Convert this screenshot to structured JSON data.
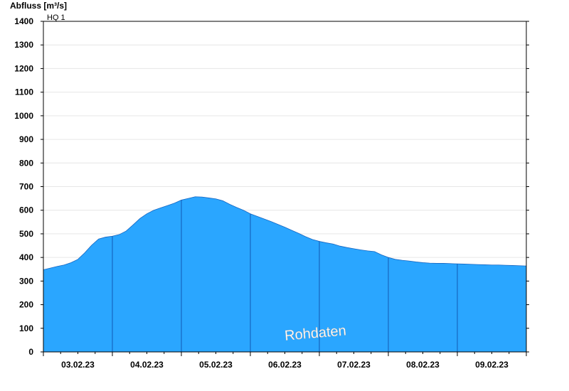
{
  "chart_data": {
    "type": "area",
    "ylabel": "Abfluss [m³/s]",
    "ylim": [
      0,
      1400
    ],
    "yticks": [
      0,
      100,
      200,
      300,
      400,
      500,
      600,
      700,
      800,
      900,
      1000,
      1100,
      1200,
      1300,
      1400
    ],
    "xticks": [
      "03.02.23",
      "04.02.23",
      "05.02.23",
      "06.02.23",
      "07.02.23",
      "08.02.23",
      "09.02.23"
    ],
    "x_range_days": [
      0,
      7
    ],
    "annotations": [
      {
        "text": "HQ 1",
        "y": 1400
      },
      {
        "text": "Rohdaten"
      }
    ],
    "grid": "horizontal",
    "fill_color": "#2aa6ff",
    "series": [
      {
        "x": [
          0,
          0.1,
          0.2,
          0.3,
          0.4,
          0.5,
          0.6,
          0.7,
          0.8,
          0.9,
          1.0,
          1.1,
          1.2,
          1.3,
          1.4,
          1.5,
          1.6,
          1.7,
          1.8,
          1.9,
          2.0,
          2.1,
          2.2,
          2.3,
          2.4,
          2.5,
          2.6,
          2.7,
          2.8,
          2.9,
          3.0,
          3.1,
          3.2,
          3.3,
          3.4,
          3.5,
          3.6,
          3.7,
          3.8,
          3.9,
          4.0,
          4.1,
          4.2,
          4.3,
          4.4,
          4.5,
          4.6,
          4.7,
          4.8,
          4.9,
          5.0,
          5.1,
          5.2,
          5.3,
          5.4,
          5.5,
          5.6,
          5.7,
          5.8,
          5.9,
          6.0,
          6.1,
          6.2,
          6.3,
          6.4,
          6.5,
          6.6,
          6.7,
          6.8,
          6.9,
          7.0
        ],
        "values": [
          348,
          355,
          362,
          368,
          378,
          392,
          420,
          452,
          478,
          486,
          490,
          497,
          512,
          538,
          565,
          585,
          600,
          610,
          620,
          630,
          643,
          650,
          657,
          656,
          652,
          648,
          640,
          625,
          612,
          600,
          585,
          574,
          563,
          552,
          540,
          528,
          515,
          502,
          488,
          476,
          468,
          462,
          457,
          448,
          442,
          437,
          432,
          428,
          425,
          411,
          400,
          392,
          388,
          385,
          381,
          378,
          376,
          375,
          375,
          374,
          373,
          372,
          371,
          370,
          369,
          368,
          368,
          367,
          366,
          365,
          364
        ]
      }
    ]
  }
}
